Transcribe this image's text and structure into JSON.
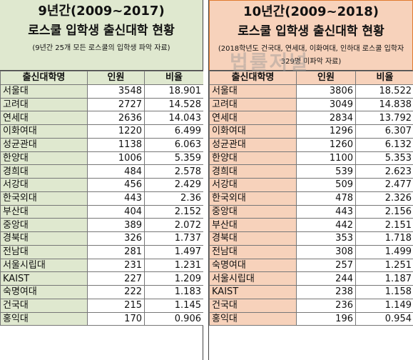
{
  "left": {
    "title": "9년간(2009~2017)",
    "subtitle": "로스쿨 입학생 출신대학 현황",
    "note": "(9년간 25개 모든 로스쿨의 입학생 파악 자료)",
    "headers": [
      "출신대학명",
      "인원",
      "비율"
    ],
    "rows": [
      [
        "서울대",
        "3548",
        "18.901"
      ],
      [
        "고려대",
        "2727",
        "14.528"
      ],
      [
        "연세대",
        "2636",
        "14.043"
      ],
      [
        "이화여대",
        "1220",
        "6.499"
      ],
      [
        "성균관대",
        "1138",
        "6.063"
      ],
      [
        "한양대",
        "1006",
        "5.359"
      ],
      [
        "경희대",
        "484",
        "2.578"
      ],
      [
        "서강대",
        "456",
        "2.429"
      ],
      [
        "한국외대",
        "443",
        "2.36"
      ],
      [
        "부산대",
        "404",
        "2.152"
      ],
      [
        "중앙대",
        "389",
        "2.072"
      ],
      [
        "경북대",
        "326",
        "1.737"
      ],
      [
        "전남대",
        "281",
        "1.497"
      ],
      [
        "서울시립대",
        "231",
        "1.231"
      ],
      [
        "KAIST",
        "227",
        "1.209"
      ],
      [
        "숙명여대",
        "222",
        "1.183"
      ],
      [
        "건국대",
        "215",
        "1.145"
      ],
      [
        "홍익대",
        "170",
        "0.906"
      ]
    ]
  },
  "right": {
    "title": "10년간(2009~2018)",
    "subtitle": "로스쿨 입학생 출신대학 현황",
    "note": "(2018학년도 건국대, 연세대, 이화여대, 인하대 로스쿨 입학자 329명 미파악 자료)",
    "headers": [
      "출신대학명",
      "인원",
      "비율"
    ],
    "rows": [
      [
        "서울대",
        "3806",
        "18.522"
      ],
      [
        "고려대",
        "3049",
        "14.838"
      ],
      [
        "연세대",
        "2834",
        "13.792"
      ],
      [
        "이화여대",
        "1296",
        "6.307"
      ],
      [
        "성균관대",
        "1260",
        "6.132"
      ],
      [
        "한양대",
        "1100",
        "5.353"
      ],
      [
        "경희대",
        "539",
        "2.623"
      ],
      [
        "서강대",
        "509",
        "2.477"
      ],
      [
        "한국외대",
        "478",
        "2.326"
      ],
      [
        "중앙대",
        "443",
        "2.156"
      ],
      [
        "부산대",
        "442",
        "2.151"
      ],
      [
        "경북대",
        "353",
        "1.718"
      ],
      [
        "전남대",
        "308",
        "1.499"
      ],
      [
        "숙명여대",
        "257",
        "1.251"
      ],
      [
        "서울시립대",
        "244",
        "1.187"
      ],
      [
        "KAIST",
        "238",
        "1.158"
      ],
      [
        "건국대",
        "236",
        "1.149"
      ],
      [
        "홍익대",
        "196",
        "0.954"
      ]
    ]
  },
  "watermark": "법률저널",
  "colors": {
    "left_fill": "#dfe8cf",
    "right_fill": "#f7d2bb",
    "right_border": "#e07a30"
  }
}
